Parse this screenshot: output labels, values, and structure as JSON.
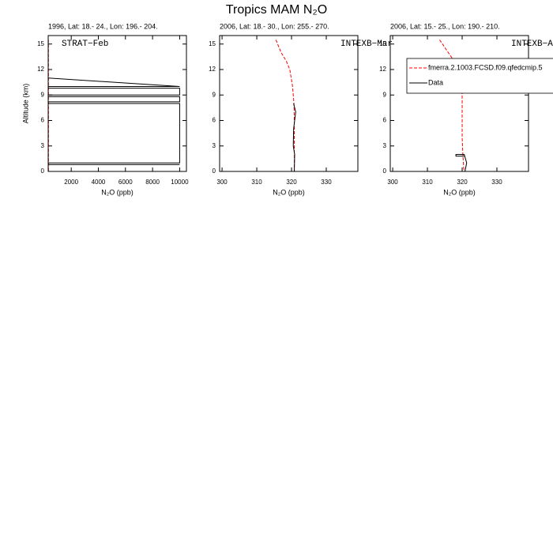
{
  "title": "Tropics MAM N₂O",
  "chart_data": [
    {
      "type": "line",
      "subtitle": "1996, Lat: 18.- 24., Lon: 196.- 204.",
      "annotation": "STRAT−Feb",
      "xlabel": "N₂O (ppb)",
      "ylabel": "Altitude (km)",
      "xlim": [
        300,
        10500
      ],
      "ylim": [
        0,
        16
      ],
      "xticks": [
        2000,
        4000,
        6000,
        8000,
        10000
      ],
      "yticks": [
        0,
        3,
        6,
        9,
        12,
        15
      ],
      "series": [
        {
          "color": "#ff0000",
          "dash": true,
          "x": [
            315.5,
            317,
            318.5,
            319.5,
            320.3,
            320.7,
            320.8,
            320.8,
            320.8,
            320.8
          ],
          "values": [
            15.5,
            14,
            13,
            12,
            10,
            8,
            6,
            4,
            2,
            0
          ]
        },
        {
          "color": "#000000",
          "dash": false,
          "x": [
            300,
            10000,
            300,
            300,
            10000,
            10000,
            300,
            300,
            10000,
            10000,
            300,
            300,
            10000,
            10000,
            300,
            300,
            10000
          ],
          "values": [
            11,
            10,
            10,
            9.8,
            9.8,
            9,
            9,
            8.8,
            8.8,
            8.2,
            8.2,
            8,
            8,
            1,
            1,
            0.8,
            0.8
          ]
        }
      ]
    },
    {
      "type": "line",
      "subtitle": "2006, Lat: 18.- 30., Lon: 255.- 270.",
      "annotation": "INTEXB−Mar",
      "xlabel": "N₂O (ppb)",
      "xlim": [
        299.3,
        339.1
      ],
      "ylim": [
        0,
        16
      ],
      "xticks": [
        300,
        310,
        320,
        330
      ],
      "yticks": [
        0,
        3,
        6,
        9,
        12,
        15
      ],
      "series": [
        {
          "color": "#ff0000",
          "dash": true,
          "x": [
            315.5,
            317,
            318.5,
            319.5,
            320.3,
            320.7,
            320.8,
            320.8,
            320.8,
            320.8
          ],
          "values": [
            15.5,
            14,
            13,
            12,
            10,
            8,
            6,
            4,
            2,
            0
          ]
        },
        {
          "color": "#000000",
          "dash": false,
          "x": [
            320.8,
            320.9,
            320.5,
            320.6,
            321.2,
            320.6
          ],
          "values": [
            0,
            2,
            3,
            5,
            7,
            8
          ]
        }
      ]
    },
    {
      "type": "line",
      "subtitle": "2006, Lat: 15.- 25., Lon: 190.- 210.",
      "annotation": "INTEXB−Apr",
      "xlabel": "N₂O (ppb)",
      "xlim": [
        299.3,
        339.1
      ],
      "ylim": [
        0,
        16
      ],
      "xticks": [
        300,
        310,
        320,
        330
      ],
      "yticks": [
        0,
        3,
        6,
        9,
        12,
        15
      ],
      "legend": true,
      "series": [
        {
          "name": "fmerra.2.1003.FCSD.f09.qfedcmip.5",
          "color": "#ff0000",
          "dash": true,
          "x": [
            313.5,
            316,
            318.5,
            319.5,
            320,
            320,
            320.2,
            320.5
          ],
          "values": [
            15.5,
            14,
            12.5,
            11,
            9,
            4,
            2,
            0
          ]
        },
        {
          "name": "Data",
          "color": "#000000",
          "dash": false,
          "x": [
            320.8,
            321.3,
            320.6,
            318.2,
            318.2,
            320.6
          ],
          "values": [
            0,
            1,
            2,
            2,
            1.8,
            1.8
          ]
        }
      ]
    }
  ]
}
